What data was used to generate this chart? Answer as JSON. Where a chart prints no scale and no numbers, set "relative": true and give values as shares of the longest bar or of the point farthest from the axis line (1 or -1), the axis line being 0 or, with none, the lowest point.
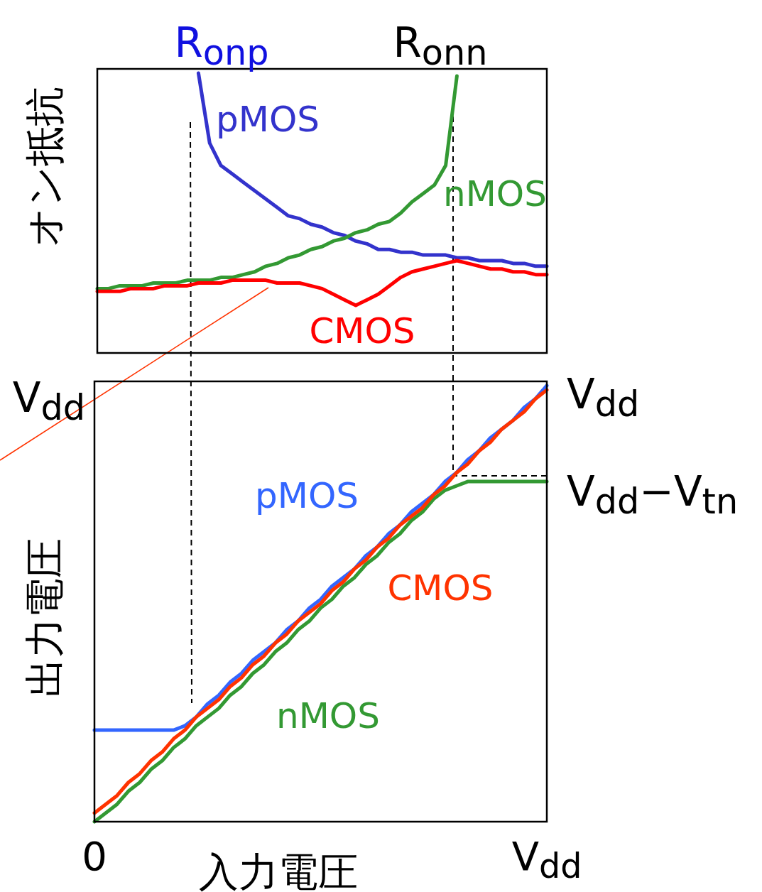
{
  "chart_data": [
    {
      "type": "line",
      "relative": true,
      "ylabel": "オン抵抗",
      "line_style": "solid",
      "marker": "none",
      "categories": [
        null,
        null,
        null,
        null,
        null,
        null,
        null,
        null,
        null,
        null,
        null,
        null,
        null,
        null,
        null,
        null,
        null,
        null,
        null,
        null,
        null,
        null,
        null,
        null,
        null,
        null,
        null,
        null,
        null,
        null,
        null,
        null,
        null,
        null,
        null,
        null,
        null,
        null,
        null,
        null,
        null
      ],
      "series": [
        {
          "name": "pMOS",
          "color": "#3333cc",
          "values": [
            null,
            null,
            null,
            null,
            null,
            null,
            null,
            null,
            null,
            1.0,
            0.75,
            0.67,
            0.64,
            0.61,
            0.58,
            0.55,
            0.52,
            0.49,
            0.48,
            0.46,
            0.45,
            0.43,
            0.42,
            0.4,
            0.39,
            0.37,
            0.37,
            0.36,
            0.36,
            0.35,
            0.35,
            0.35,
            0.34,
            0.34,
            0.33,
            0.33,
            0.33,
            0.32,
            0.32,
            0.31,
            0.31
          ]
        },
        {
          "name": "nMOS",
          "color": "#339933",
          "values": [
            0.23,
            0.23,
            0.24,
            0.24,
            0.24,
            0.25,
            0.25,
            0.25,
            0.26,
            0.26,
            0.26,
            0.27,
            0.27,
            0.28,
            0.29,
            0.31,
            0.32,
            0.34,
            0.35,
            0.37,
            0.38,
            0.4,
            0.41,
            0.43,
            0.44,
            0.46,
            0.47,
            0.5,
            0.54,
            0.57,
            0.6,
            0.67,
            0.99,
            null,
            null,
            null,
            null,
            null,
            null,
            null,
            null
          ]
        },
        {
          "name": "CMOS",
          "color": "#ff0000",
          "values": [
            0.22,
            0.22,
            0.22,
            0.23,
            0.23,
            0.23,
            0.24,
            0.24,
            0.24,
            0.25,
            0.25,
            0.25,
            0.26,
            0.26,
            0.26,
            0.26,
            0.25,
            0.25,
            0.25,
            0.24,
            0.23,
            0.21,
            0.19,
            0.17,
            0.19,
            0.21,
            0.24,
            0.27,
            0.29,
            0.3,
            0.31,
            0.32,
            0.33,
            0.32,
            0.31,
            0.3,
            0.3,
            0.29,
            0.29,
            0.28,
            0.28
          ]
        }
      ],
      "annotations": [
        "R$_{onp}$",
        "R$_{onn}$"
      ]
    },
    {
      "type": "line",
      "relative": true,
      "xlabel": "入力電圧",
      "ylabel": "出力電圧",
      "line_style": "solid",
      "marker": "none",
      "categories": [
        "0",
        null,
        null,
        null,
        null,
        null,
        null,
        null,
        null,
        null,
        null,
        null,
        null,
        null,
        null,
        null,
        null,
        null,
        null,
        null,
        null,
        null,
        null,
        null,
        null,
        null,
        null,
        null,
        null,
        null,
        null,
        null,
        null,
        null,
        null,
        null,
        null,
        null,
        null,
        null,
        "V$_{dd}$"
      ],
      "series": [
        {
          "name": "pMOS",
          "color": "#3366ff",
          "values": [
            0.21,
            0.21,
            0.21,
            0.21,
            0.21,
            0.21,
            0.21,
            0.21,
            0.22,
            0.24,
            0.27,
            0.29,
            0.32,
            0.34,
            0.37,
            0.39,
            0.41,
            0.44,
            0.46,
            0.49,
            0.51,
            0.54,
            0.56,
            0.58,
            0.61,
            0.63,
            0.66,
            0.68,
            0.71,
            0.73,
            0.75,
            0.78,
            0.8,
            0.83,
            0.85,
            0.88,
            0.9,
            0.92,
            0.95,
            0.97,
            1.0
          ]
        },
        {
          "name": "nMOS",
          "color": "#339933",
          "values": [
            0,
            0.02,
            0.04,
            0.07,
            0.09,
            0.12,
            0.14,
            0.17,
            0.19,
            0.22,
            0.24,
            0.26,
            0.29,
            0.31,
            0.34,
            0.36,
            0.39,
            0.41,
            0.44,
            0.46,
            0.49,
            0.51,
            0.54,
            0.56,
            0.59,
            0.61,
            0.64,
            0.66,
            0.69,
            0.71,
            0.74,
            0.76,
            0.77,
            0.78,
            0.78,
            0.78,
            0.78,
            0.78,
            0.78,
            0.78,
            0.78
          ]
        },
        {
          "name": "CMOS",
          "color": "#ff3300",
          "values": [
            0.02,
            0.04,
            0.06,
            0.09,
            0.11,
            0.14,
            0.16,
            0.19,
            0.21,
            0.24,
            0.26,
            0.28,
            0.31,
            0.33,
            0.36,
            0.38,
            0.41,
            0.43,
            0.46,
            0.48,
            0.5,
            0.53,
            0.55,
            0.58,
            0.6,
            0.63,
            0.65,
            0.68,
            0.7,
            0.72,
            0.75,
            0.77,
            0.8,
            0.82,
            0.85,
            0.87,
            0.9,
            0.92,
            0.94,
            0.97,
            0.99
          ]
        }
      ],
      "annotations": [
        "V$_{dd}$",
        "V$_{dd}$",
        "V$_{dd}$−V$_{tn}$"
      ]
    }
  ]
}
